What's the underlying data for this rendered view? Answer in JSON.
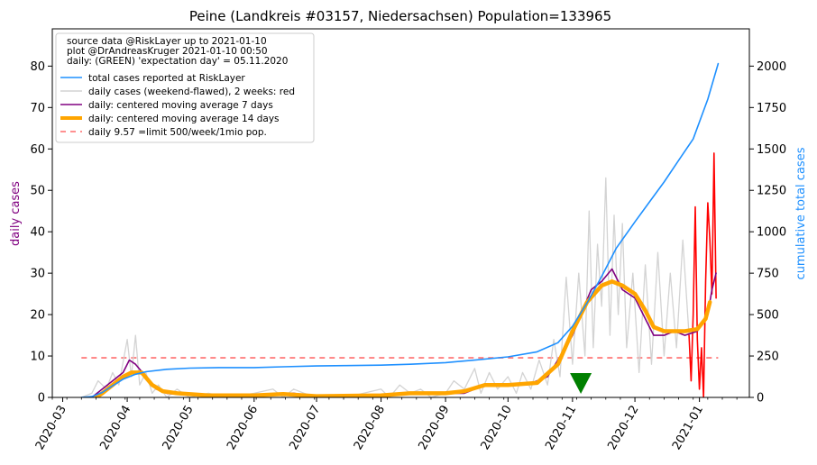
{
  "chart_data": {
    "type": "line",
    "title": "Peine (Landkreis #03157, Niedersachsen) Population=133965",
    "ylabel_left": "daily cases",
    "ylabel_right": "cumulative total cases",
    "xlabel": "",
    "x_range": [
      "2020-02-25",
      "2021-01-25"
    ],
    "ylim_left": [
      0,
      89
    ],
    "ylim_right": [
      0,
      2225
    ],
    "grid": false,
    "x_ticks": [
      "2020-03",
      "2020-04",
      "2020-05",
      "2020-06",
      "2020-07",
      "2020-08",
      "2020-09",
      "2020-10",
      "2020-11",
      "2020-12",
      "2021-01"
    ],
    "y_ticks_left": [
      0,
      10,
      20,
      30,
      40,
      50,
      60,
      70,
      80
    ],
    "y_ticks_right": [
      0,
      250,
      500,
      750,
      1000,
      1250,
      1500,
      1750,
      2000
    ],
    "legend_placement": "top-left",
    "legend_header": [
      "source data @RiskLayer up to 2021-01-10",
      "plot @DrAndreasKruger 2021-01-10 00:50",
      "daily: (GREEN) 'expectation day' = 05.11.2020"
    ],
    "expectation_day": "2020-11-05",
    "colors": {
      "total": "#1e90ff",
      "daily_raw": "#d3d3d3",
      "daily_recent": "#ff0000",
      "ma7": "#800080",
      "ma14": "#ffa500",
      "limit": "#ff6b6b",
      "marker": "#008000"
    },
    "series": [
      {
        "name": "total cases reported at RiskLayer",
        "axis": "right",
        "color": "#1e90ff",
        "points": [
          [
            "2020-03-10",
            0
          ],
          [
            "2020-03-15",
            5
          ],
          [
            "2020-03-20",
            30
          ],
          [
            "2020-03-25",
            70
          ],
          [
            "2020-03-30",
            110
          ],
          [
            "2020-04-05",
            140
          ],
          [
            "2020-04-10",
            155
          ],
          [
            "2020-04-20",
            170
          ],
          [
            "2020-05-01",
            177
          ],
          [
            "2020-05-15",
            180
          ],
          [
            "2020-06-01",
            180
          ],
          [
            "2020-06-15",
            185
          ],
          [
            "2020-07-01",
            190
          ],
          [
            "2020-07-15",
            192
          ],
          [
            "2020-08-01",
            195
          ],
          [
            "2020-08-15",
            200
          ],
          [
            "2020-09-01",
            210
          ],
          [
            "2020-09-15",
            225
          ],
          [
            "2020-10-01",
            245
          ],
          [
            "2020-10-15",
            275
          ],
          [
            "2020-10-25",
            330
          ],
          [
            "2020-11-01",
            430
          ],
          [
            "2020-11-08",
            570
          ],
          [
            "2020-11-15",
            730
          ],
          [
            "2020-11-22",
            900
          ],
          [
            "2020-12-01",
            1060
          ],
          [
            "2020-12-08",
            1180
          ],
          [
            "2020-12-15",
            1300
          ],
          [
            "2020-12-22",
            1430
          ],
          [
            "2020-12-29",
            1560
          ],
          [
            "2021-01-05",
            1800
          ],
          [
            "2021-01-10",
            2015
          ]
        ]
      },
      {
        "name": "daily cases (weekend-flawed), 2 weeks: red",
        "axis": "left",
        "color": "#d3d3d3",
        "points": [
          [
            "2020-03-10",
            0
          ],
          [
            "2020-03-15",
            1
          ],
          [
            "2020-03-18",
            4
          ],
          [
            "2020-03-22",
            2
          ],
          [
            "2020-03-25",
            6
          ],
          [
            "2020-03-28",
            3
          ],
          [
            "2020-04-01",
            14
          ],
          [
            "2020-04-03",
            5
          ],
          [
            "2020-04-05",
            15
          ],
          [
            "2020-04-07",
            3
          ],
          [
            "2020-04-10",
            6
          ],
          [
            "2020-04-13",
            1
          ],
          [
            "2020-04-16",
            3
          ],
          [
            "2020-04-20",
            0
          ],
          [
            "2020-04-25",
            2
          ],
          [
            "2020-05-01",
            0
          ],
          [
            "2020-05-10",
            1
          ],
          [
            "2020-05-20",
            0
          ],
          [
            "2020-06-01",
            1
          ],
          [
            "2020-06-10",
            2
          ],
          [
            "2020-06-15",
            0
          ],
          [
            "2020-06-20",
            2
          ],
          [
            "2020-06-25",
            1
          ],
          [
            "2020-07-01",
            0
          ],
          [
            "2020-07-15",
            0
          ],
          [
            "2020-08-01",
            2
          ],
          [
            "2020-08-05",
            0
          ],
          [
            "2020-08-10",
            3
          ],
          [
            "2020-08-15",
            1
          ],
          [
            "2020-08-20",
            2
          ],
          [
            "2020-08-25",
            0
          ],
          [
            "2020-09-01",
            1
          ],
          [
            "2020-09-05",
            4
          ],
          [
            "2020-09-10",
            2
          ],
          [
            "2020-09-15",
            7
          ],
          [
            "2020-09-18",
            1
          ],
          [
            "2020-09-22",
            6
          ],
          [
            "2020-09-26",
            2
          ],
          [
            "2020-10-01",
            5
          ],
          [
            "2020-10-05",
            1
          ],
          [
            "2020-10-08",
            6
          ],
          [
            "2020-10-12",
            2
          ],
          [
            "2020-10-16",
            9
          ],
          [
            "2020-10-20",
            3
          ],
          [
            "2020-10-23",
            14
          ],
          [
            "2020-10-26",
            5
          ],
          [
            "2020-10-29",
            29
          ],
          [
            "2020-11-01",
            8
          ],
          [
            "2020-11-04",
            30
          ],
          [
            "2020-11-07",
            10
          ],
          [
            "2020-11-09",
            45
          ],
          [
            "2020-11-11",
            12
          ],
          [
            "2020-11-13",
            37
          ],
          [
            "2020-11-15",
            22
          ],
          [
            "2020-11-17",
            53
          ],
          [
            "2020-11-19",
            15
          ],
          [
            "2020-11-21",
            44
          ],
          [
            "2020-11-23",
            20
          ],
          [
            "2020-11-25",
            42
          ],
          [
            "2020-11-27",
            12
          ],
          [
            "2020-11-30",
            30
          ],
          [
            "2020-12-03",
            6
          ],
          [
            "2020-12-06",
            32
          ],
          [
            "2020-12-09",
            8
          ],
          [
            "2020-12-12",
            35
          ],
          [
            "2020-12-15",
            10
          ],
          [
            "2020-12-18",
            30
          ],
          [
            "2020-12-21",
            12
          ],
          [
            "2020-12-24",
            38
          ],
          [
            "2020-12-27",
            15
          ]
        ]
      },
      {
        "name": "daily cases (weekend-flawed), 2 weeks: red (recent)",
        "axis": "left",
        "color": "#ff0000",
        "points": [
          [
            "2020-12-27",
            15
          ],
          [
            "2020-12-28",
            4
          ],
          [
            "2020-12-29",
            20
          ],
          [
            "2020-12-30",
            46
          ],
          [
            "2020-12-31",
            14
          ],
          [
            "2021-01-01",
            2
          ],
          [
            "2021-01-02",
            12
          ],
          [
            "2021-01-03",
            0
          ],
          [
            "2021-01-04",
            28
          ],
          [
            "2021-01-05",
            47
          ],
          [
            "2021-01-06",
            38
          ],
          [
            "2021-01-07",
            25
          ],
          [
            "2021-01-08",
            59
          ],
          [
            "2021-01-09",
            24
          ]
        ]
      },
      {
        "name": "daily: centered moving average 7 days",
        "axis": "left",
        "color": "#800080",
        "points": [
          [
            "2020-03-15",
            0
          ],
          [
            "2020-03-20",
            2
          ],
          [
            "2020-03-25",
            4
          ],
          [
            "2020-03-30",
            6
          ],
          [
            "2020-04-02",
            9
          ],
          [
            "2020-04-05",
            8
          ],
          [
            "2020-04-10",
            5
          ],
          [
            "2020-04-15",
            2
          ],
          [
            "2020-04-20",
            1
          ],
          [
            "2020-05-01",
            0.5
          ],
          [
            "2020-06-01",
            0.5
          ],
          [
            "2020-06-20",
            1
          ],
          [
            "2020-07-01",
            0.3
          ],
          [
            "2020-08-01",
            0.3
          ],
          [
            "2020-08-10",
            1
          ],
          [
            "2020-08-25",
            1
          ],
          [
            "2020-09-10",
            1
          ],
          [
            "2020-09-20",
            3
          ],
          [
            "2020-10-01",
            3
          ],
          [
            "2020-10-10",
            3
          ],
          [
            "2020-10-20",
            5
          ],
          [
            "2020-10-25",
            9
          ],
          [
            "2020-11-01",
            15
          ],
          [
            "2020-11-05",
            20
          ],
          [
            "2020-11-10",
            26
          ],
          [
            "2020-11-15",
            28
          ],
          [
            "2020-11-20",
            31
          ],
          [
            "2020-11-25",
            26
          ],
          [
            "2020-12-01",
            24
          ],
          [
            "2020-12-05",
            20
          ],
          [
            "2020-12-10",
            15
          ],
          [
            "2020-12-15",
            15
          ],
          [
            "2020-12-20",
            16
          ],
          [
            "2020-12-25",
            15
          ],
          [
            "2020-12-31",
            16
          ],
          [
            "2021-01-05",
            20
          ],
          [
            "2021-01-07",
            26
          ],
          [
            "2021-01-09",
            30
          ]
        ]
      },
      {
        "name": "daily: centered moving average 14 days",
        "axis": "left",
        "color": "#ffa500",
        "points": [
          [
            "2020-03-17",
            0
          ],
          [
            "2020-03-20",
            1
          ],
          [
            "2020-03-25",
            3
          ],
          [
            "2020-03-30",
            5
          ],
          [
            "2020-04-03",
            6
          ],
          [
            "2020-04-08",
            6
          ],
          [
            "2020-04-13",
            3
          ],
          [
            "2020-04-18",
            1.5
          ],
          [
            "2020-04-25",
            1
          ],
          [
            "2020-05-10",
            0.5
          ],
          [
            "2020-06-01",
            0.5
          ],
          [
            "2020-06-15",
            0.8
          ],
          [
            "2020-07-01",
            0.3
          ],
          [
            "2020-08-01",
            0.5
          ],
          [
            "2020-08-15",
            1
          ],
          [
            "2020-09-01",
            1
          ],
          [
            "2020-09-10",
            1.5
          ],
          [
            "2020-09-20",
            3
          ],
          [
            "2020-10-01",
            3
          ],
          [
            "2020-10-15",
            3.5
          ],
          [
            "2020-10-25",
            8
          ],
          [
            "2020-11-01",
            16
          ],
          [
            "2020-11-08",
            23
          ],
          [
            "2020-11-15",
            27
          ],
          [
            "2020-11-20",
            28
          ],
          [
            "2020-11-25",
            27
          ],
          [
            "2020-12-01",
            25
          ],
          [
            "2020-12-06",
            21
          ],
          [
            "2020-12-10",
            17
          ],
          [
            "2020-12-15",
            16
          ],
          [
            "2020-12-20",
            16
          ],
          [
            "2020-12-25",
            16
          ],
          [
            "2020-12-31",
            16.5
          ],
          [
            "2021-01-04",
            19
          ],
          [
            "2021-01-06",
            23
          ]
        ]
      }
    ],
    "reference_line": {
      "name": "daily 9.57 =limit 500/week/1mio pop.",
      "axis": "left",
      "value": 9.57,
      "x_from": "2020-03-10",
      "x_to": "2021-01-10",
      "style": "dashed"
    }
  }
}
